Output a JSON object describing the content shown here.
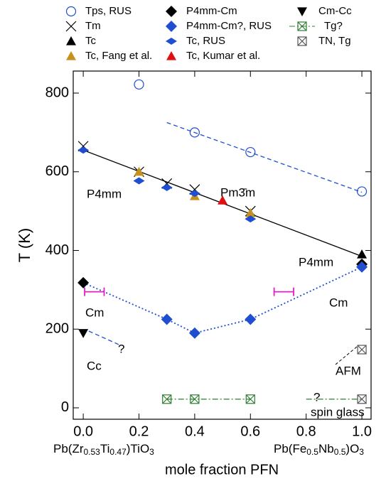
{
  "chart_data": {
    "type": "scatter",
    "x_label": "mole fraction PFN",
    "y_label": "T (K)",
    "xlim": [
      -0.036,
      1.033
    ],
    "ylim": [
      -29,
      856
    ],
    "xticks": [
      {
        "value": 0,
        "label": "0.0"
      },
      {
        "value": 0.2,
        "label": "0.2"
      },
      {
        "value": 0.4,
        "label": "0.4"
      },
      {
        "value": 0.6,
        "label": "0.6"
      },
      {
        "value": 0.8,
        "label": "0.8"
      },
      {
        "value": 1,
        "label": "1.0"
      }
    ],
    "yticks": [
      0,
      200,
      400,
      600,
      800
    ],
    "series": [
      {
        "name": "Tps, RUS",
        "marker": "circle-open",
        "color": "#1f4fd0",
        "x": [
          0.2,
          0.4,
          0.6,
          1.0
        ],
        "values": [
          822,
          700,
          650,
          550
        ]
      },
      {
        "name": "Tm",
        "marker": "x",
        "color": "#000000",
        "x": [
          0,
          0.2,
          0.3,
          0.4,
          0.6
        ],
        "values": [
          665,
          600,
          570,
          555,
          500
        ]
      },
      {
        "name": "Tc",
        "marker": "triangle-up",
        "color": "#000000",
        "x": [
          1.0
        ],
        "values": [
          390
        ]
      },
      {
        "name": "Tc, Fang et al.",
        "marker": "triangle-up",
        "color": "#c8901e",
        "x": [
          0.2,
          0.4,
          0.6
        ],
        "values": [
          600,
          538,
          495
        ]
      },
      {
        "name": "P4mm-Cm",
        "marker": "diamond",
        "color": "#000000",
        "x": [
          0,
          1.0
        ],
        "values": [
          318,
          365
        ]
      },
      {
        "name": "P4mm-Cm?, RUS",
        "marker": "diamond",
        "color": "#1f4fd0",
        "x": [
          0.3,
          0.4,
          0.6,
          1.0
        ],
        "values": [
          225,
          190,
          225,
          358
        ]
      },
      {
        "name": "Tc, RUS",
        "marker": "diamond-small",
        "color": "#1f4fd0",
        "x": [
          0,
          0.2,
          0.3,
          0.4,
          0.6
        ],
        "values": [
          655,
          577,
          560,
          545,
          480
        ]
      },
      {
        "name": "Tc, Kumar et al.",
        "marker": "triangle-up",
        "color": "#e01010",
        "x": [
          0.5
        ],
        "values": [
          527
        ]
      },
      {
        "name": "Cm-Cc",
        "marker": "triangle-down",
        "color": "#000000",
        "x": [
          0
        ],
        "values": [
          190
        ]
      },
      {
        "name": "Tg?",
        "marker": "box-x",
        "color": "#2e7d32",
        "legend_line": "dashdot",
        "x": [
          0.3,
          0.4,
          0.6
        ],
        "values": [
          22,
          22,
          22
        ]
      },
      {
        "name": "TN, Tg",
        "marker": "box-x",
        "color": "#555555",
        "x": [
          1.0,
          1.0
        ],
        "values": [
          148,
          22
        ]
      }
    ],
    "fits": [
      {
        "style": "solid",
        "color": "#000000",
        "x": [
          0,
          1.0
        ],
        "values": [
          655,
          385
        ]
      },
      {
        "style": "dashed",
        "color": "#1f4fd0",
        "x": [
          0.3,
          1.0
        ],
        "values": [
          725,
          548
        ]
      },
      {
        "style": "dotted",
        "color": "#1f4fd0",
        "x": [
          0,
          0.3,
          0.4,
          0.6,
          1.0
        ],
        "values": [
          318,
          225,
          190,
          225,
          358
        ]
      },
      {
        "style": "dashed",
        "color": "#1f4fd0",
        "x": [
          0.02,
          0.13
        ],
        "values": [
          195,
          160
        ]
      },
      {
        "style": "dashdot",
        "color": "#2e7d32",
        "x": [
          0.3,
          0.6
        ],
        "values": [
          22,
          22
        ]
      },
      {
        "style": "dashdot",
        "color": "#2e7d32",
        "x": [
          0.8,
          1.0
        ],
        "values": [
          22,
          22
        ]
      }
    ],
    "error_bars": [
      {
        "color": "#e020c0",
        "x": 0.04,
        "values": 295,
        "xerr": 0.035
      },
      {
        "color": "#e020c0",
        "x": 0.72,
        "values": 295,
        "xerr": 0.035
      }
    ],
    "annotations": [
      "Pm3̄m",
      "P4mm",
      "P4mm",
      "Cm",
      "Cm",
      "Cc",
      "?",
      "?",
      "AFM",
      "spin glass"
    ],
    "x_end_labels": [
      [
        {
          "text": "Pb(Zr"
        },
        {
          "text": "0.53",
          "sub": true
        },
        {
          "text": "Ti"
        },
        {
          "text": "0.47",
          "sub": true
        },
        {
          "text": ")TiO"
        },
        {
          "text": "3",
          "sub": true
        }
      ],
      [
        {
          "text": "Pb(Fe"
        },
        {
          "text": "0.5",
          "sub": true
        },
        {
          "text": "Nb"
        },
        {
          "text": "0.5",
          "sub": true
        },
        {
          "text": ")O"
        },
        {
          "text": "3",
          "sub": true
        }
      ]
    ]
  }
}
